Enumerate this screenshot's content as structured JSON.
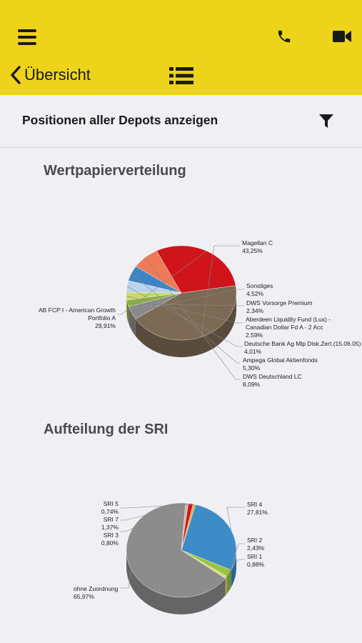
{
  "header": {
    "back_label": "Übersicht",
    "icons": [
      "menu-icon",
      "phone-icon",
      "video-icon",
      "chevron-left-icon",
      "list-icon"
    ]
  },
  "filter_bar": {
    "title": "Positionen aller Depots anzeigen",
    "icon": "filter-icon"
  },
  "colors": {
    "accent": "#edd319",
    "background": "#efeff4"
  },
  "chart_data": [
    {
      "type": "pie",
      "title": "Wertpapierverteilung",
      "slices": [
        {
          "name": "Magellan C",
          "value_label": "43,25%",
          "value": 43.25,
          "color": "#7d6a55"
        },
        {
          "name": "Sonstiges",
          "value_label": "4,52%",
          "value": 4.52,
          "color": "#8a8a8a"
        },
        {
          "name": "DWS Vorsorge Premium",
          "value_label": "2,34%",
          "value": 2.34,
          "color": "#8ab043"
        },
        {
          "name": "Aberdeen Liquidity Fund (Lux) - Canadian Dollar Fd A - 2 Acc",
          "value_label": "2,59%",
          "value": 2.59,
          "color": "#c8d96a"
        },
        {
          "name": "Deutsche Bank Ag Mlp Disk.Zert.(15.06.05)",
          "value_label": "4,01%",
          "value": 4.01,
          "color": "#b9d3ec"
        },
        {
          "name": "Ampega Global Aktienfonds",
          "value_label": "5,30%",
          "value": 5.3,
          "color": "#3d84c4"
        },
        {
          "name": "DWS Deutschland LC",
          "value_label": "8,09%",
          "value": 8.09,
          "color": "#ee7b55"
        },
        {
          "name": "AB FCP I - American Growth Portfolio A",
          "value_label": "29,91%",
          "value": 29.91,
          "color": "#d0141c"
        }
      ]
    },
    {
      "type": "pie",
      "title": "Aufteilung der SRI",
      "slices": [
        {
          "name": "SRI 4",
          "value_label": "27,81%",
          "value": 27.81,
          "color": "#3d8cc8"
        },
        {
          "name": "SRI 2",
          "value_label": "2,43%",
          "value": 2.43,
          "color": "#9cc33d"
        },
        {
          "name": "SRI 1",
          "value_label": "0,88%",
          "value": 0.88,
          "color": "#d4d98a"
        },
        {
          "name": "ohne Zuordnung",
          "value_label": "65,97%",
          "value": 65.97,
          "color": "#8c8c8c"
        },
        {
          "name": "SRI 3",
          "value_label": "0,80%",
          "value": 0.8,
          "color": "#c7b7a0"
        },
        {
          "name": "SRI 7",
          "value_label": "1,37%",
          "value": 1.37,
          "color": "#d0141c"
        },
        {
          "name": "SRI 5",
          "value_label": "0,74%",
          "value": 0.74,
          "color": "#d6b04a"
        }
      ]
    }
  ]
}
